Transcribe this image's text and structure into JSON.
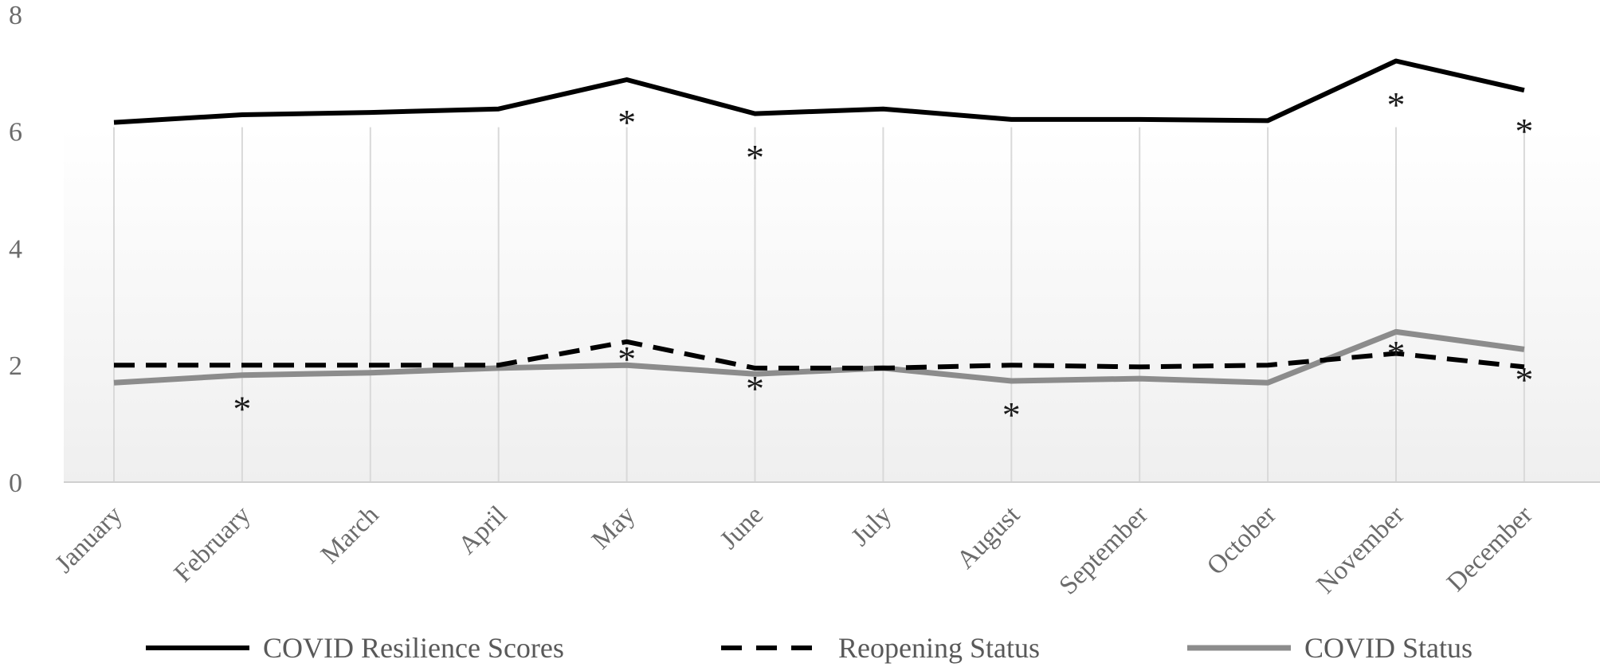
{
  "chart_data": {
    "type": "line",
    "categories": [
      "January",
      "February",
      "March",
      "April",
      "May",
      "June",
      "July",
      "August",
      "September",
      "October",
      "November",
      "December"
    ],
    "ylim": [
      0,
      8
    ],
    "yticks": [
      "0",
      "2",
      "4",
      "6",
      "8"
    ],
    "grid": "vertical",
    "legend_position": "bottom",
    "series": [
      {
        "name": "COVID Resilience Scores",
        "style": "solid",
        "color": "#000000",
        "values": [
          6.15,
          6.28,
          6.32,
          6.38,
          6.88,
          6.3,
          6.38,
          6.2,
          6.2,
          6.18,
          7.2,
          6.7
        ]
      },
      {
        "name": "Reopening Status",
        "style": "dashed",
        "color": "#000000",
        "values": [
          2.0,
          2.0,
          2.0,
          2.0,
          2.4,
          1.95,
          1.95,
          2.0,
          1.97,
          2.0,
          2.2,
          1.97
        ]
      },
      {
        "name": "COVID Status",
        "style": "solid",
        "color": "#8c8c8c",
        "values": [
          1.7,
          1.83,
          1.87,
          1.95,
          2.0,
          1.85,
          1.95,
          1.73,
          1.77,
          1.7,
          2.57,
          2.27
        ]
      }
    ],
    "annotations": [
      {
        "text": "*",
        "category": "May",
        "y": 6.35
      },
      {
        "text": "*",
        "category": "June",
        "y": 5.75
      },
      {
        "text": "*",
        "category": "November",
        "y": 6.65
      },
      {
        "text": "*",
        "category": "December",
        "y": 6.2
      },
      {
        "text": "*",
        "category": "February",
        "y": 1.45
      },
      {
        "text": "*",
        "category": "May",
        "y": 2.3
      },
      {
        "text": "*",
        "category": "June",
        "y": 1.8
      },
      {
        "text": "*",
        "category": "August",
        "y": 1.35
      },
      {
        "text": "*",
        "category": "November",
        "y": 2.4
      },
      {
        "text": "*",
        "category": "December",
        "y": 1.95
      }
    ]
  }
}
